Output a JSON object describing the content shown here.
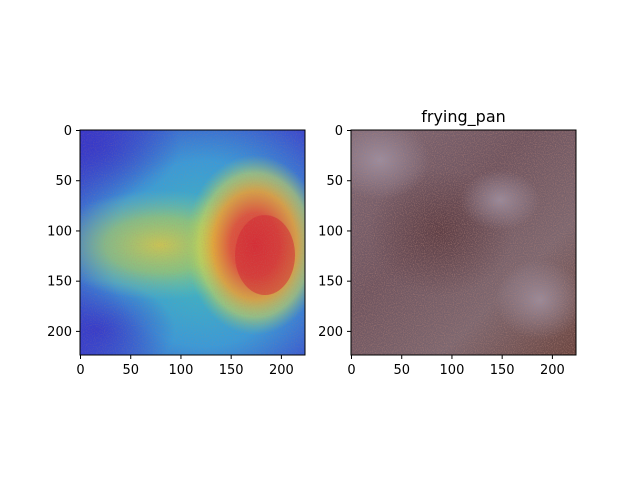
{
  "chart_data": [
    {
      "type": "heatmap",
      "title": "",
      "xlabel": "",
      "ylabel": "",
      "xlim": [
        0,
        223
      ],
      "ylim": [
        223,
        0
      ],
      "xticks": [
        0,
        50,
        100,
        150,
        200
      ],
      "yticks": [
        0,
        50,
        100,
        150,
        200
      ],
      "colormap": "jet",
      "hotspots": [
        {
          "x": 185,
          "y": 130,
          "intensity": 1.0
        },
        {
          "x": 170,
          "y": 105,
          "intensity": 0.8
        },
        {
          "x": 80,
          "y": 110,
          "intensity": 0.55
        }
      ],
      "grid": false
    },
    {
      "type": "image",
      "title": "frying_pan",
      "xlabel": "",
      "ylabel": "",
      "xlim": [
        0,
        223
      ],
      "ylim": [
        223,
        0
      ],
      "xticks": [
        0,
        50,
        100,
        150,
        200
      ],
      "yticks": [
        0,
        50,
        100,
        150,
        200
      ],
      "grid": false
    }
  ]
}
